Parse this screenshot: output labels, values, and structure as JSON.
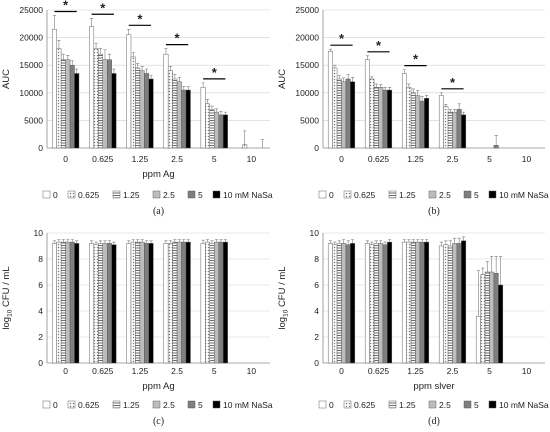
{
  "legend": {
    "items": [
      {
        "label": "0",
        "pattern": "white"
      },
      {
        "label": "0.625",
        "pattern": "dots"
      },
      {
        "label": "1.25",
        "pattern": "hlines"
      },
      {
        "label": "2.5",
        "pattern": "lightgray"
      },
      {
        "label": "5",
        "pattern": "darkgray"
      },
      {
        "label": "10 mM NaSa",
        "pattern": "black"
      }
    ]
  },
  "colors": {
    "white": "#ffffff",
    "lightgray": "#bdbdbd",
    "darkgray": "#7f7f7f",
    "black": "#000000",
    "dots": "#9a9a9a",
    "hlines": "#6e6e6e"
  },
  "chart_data": [
    {
      "type": "bar",
      "panel": "(a)",
      "ylabel": "AUC",
      "xlabel": "ppm Ag",
      "categories": [
        "0",
        "0.625",
        "1.25",
        "2.5",
        "5",
        "10"
      ],
      "yticks": [
        "0",
        "5000",
        "10000",
        "15000",
        "20000",
        "25000"
      ],
      "ylim": [
        0,
        25000
      ],
      "grid": true,
      "significance": "*",
      "sig_groups": [
        "0",
        "0.625",
        "1.25",
        "2.5",
        "5"
      ],
      "series": [
        {
          "name": "0",
          "values": [
            21500,
            22000,
            20500,
            17000,
            11000,
            0
          ],
          "errors": [
            2500,
            1500,
            1000,
            1000,
            800,
            0
          ]
        },
        {
          "name": "0.625",
          "values": [
            18000,
            18000,
            16500,
            14000,
            8000,
            600
          ],
          "errors": [
            1500,
            1000,
            800,
            800,
            800,
            2500
          ]
        },
        {
          "name": "1.25",
          "values": [
            16000,
            17000,
            14500,
            12500,
            7000,
            0
          ],
          "errors": [
            1000,
            1000,
            800,
            800,
            600,
            0
          ]
        },
        {
          "name": "2.5",
          "values": [
            16000,
            16000,
            14000,
            12000,
            6500,
            0
          ],
          "errors": [
            800,
            1800,
            800,
            800,
            600,
            0
          ]
        },
        {
          "name": "5",
          "values": [
            15000,
            16000,
            13500,
            10500,
            6000,
            0
          ],
          "errors": [
            800,
            1000,
            800,
            600,
            600,
            0
          ]
        },
        {
          "name": "10 mM NaSa",
          "values": [
            13500,
            13500,
            12500,
            10500,
            6000,
            0
          ],
          "errors": [
            800,
            800,
            700,
            600,
            500,
            1500
          ]
        }
      ]
    },
    {
      "type": "bar",
      "panel": "(b)",
      "ylabel": "AUC",
      "xlabel": "",
      "categories": [
        "0",
        "0.625",
        "1.25",
        "2.5",
        "5",
        "10"
      ],
      "yticks": [
        "0",
        "5000",
        "10000",
        "15000",
        "20000",
        "25000"
      ],
      "ylim": [
        0,
        25000
      ],
      "grid": true,
      "significance": "*",
      "sig_groups": [
        "0",
        "0.625",
        "1.25",
        "2.5"
      ],
      "series": [
        {
          "name": "0",
          "values": [
            17500,
            16000,
            13500,
            9500,
            0,
            0
          ],
          "errors": [
            400,
            700,
            700,
            500,
            0,
            0
          ]
        },
        {
          "name": "0.625",
          "values": [
            14500,
            12500,
            11000,
            7500,
            0,
            0
          ],
          "errors": [
            500,
            400,
            600,
            400,
            0,
            0
          ]
        },
        {
          "name": "1.25",
          "values": [
            12500,
            11000,
            10000,
            6500,
            0,
            0
          ],
          "errors": [
            600,
            600,
            700,
            500,
            0,
            0
          ]
        },
        {
          "name": "2.5",
          "values": [
            12000,
            11000,
            9500,
            6500,
            0,
            0
          ],
          "errors": [
            700,
            500,
            900,
            500,
            0,
            0
          ]
        },
        {
          "name": "5",
          "values": [
            12500,
            10500,
            8500,
            7000,
            500,
            0
          ],
          "errors": [
            800,
            500,
            800,
            1000,
            1800,
            0
          ]
        },
        {
          "name": "10 mM NaSa",
          "values": [
            12000,
            10500,
            9000,
            6000,
            0,
            0
          ],
          "errors": [
            800,
            500,
            500,
            500,
            0,
            0
          ]
        }
      ]
    },
    {
      "type": "bar",
      "panel": "(c)",
      "ylabel_main": "log",
      "ylabel_sub": "10",
      "ylabel_rest": " CFU / mL",
      "xlabel": "ppm Ag",
      "categories": [
        "0",
        "0.625",
        "1.25",
        "2.5",
        "5",
        "10"
      ],
      "yticks": [
        "0",
        "2",
        "4",
        "6",
        "8",
        "10"
      ],
      "ylim": [
        0,
        10
      ],
      "grid": true,
      "series": [
        {
          "name": "0",
          "values": [
            9.2,
            9.2,
            9.2,
            9.2,
            9.2,
            0
          ],
          "errors": [
            0.2,
            0.2,
            0.2,
            0.2,
            0.25,
            0
          ]
        },
        {
          "name": "0.625",
          "values": [
            9.3,
            9.1,
            9.3,
            9.2,
            9.3,
            0
          ],
          "errors": [
            0.2,
            0.2,
            0.2,
            0.2,
            0.2,
            0
          ]
        },
        {
          "name": "1.25",
          "values": [
            9.3,
            9.2,
            9.3,
            9.3,
            9.2,
            0
          ],
          "errors": [
            0.2,
            0.2,
            0.2,
            0.2,
            0.2,
            0
          ]
        },
        {
          "name": "2.5",
          "values": [
            9.3,
            9.2,
            9.3,
            9.3,
            9.3,
            0
          ],
          "errors": [
            0.2,
            0.2,
            0.2,
            0.2,
            0.2,
            0
          ]
        },
        {
          "name": "5",
          "values": [
            9.3,
            9.2,
            9.2,
            9.3,
            9.3,
            0
          ],
          "errors": [
            0.2,
            0.2,
            0.2,
            0.2,
            0.2,
            0
          ]
        },
        {
          "name": "10 mM NaSa",
          "values": [
            9.2,
            9.1,
            9.2,
            9.3,
            9.3,
            0
          ],
          "errors": [
            0.2,
            0.2,
            0.2,
            0.2,
            0.2,
            0
          ]
        }
      ]
    },
    {
      "type": "bar",
      "panel": "(d)",
      "ylabel_main": "log",
      "ylabel_sub": "10",
      "ylabel_rest": " CFU / mL",
      "xlabel": "ppm slver",
      "categories": [
        "0",
        "0.625",
        "1.25",
        "2.5",
        "5",
        "10"
      ],
      "yticks": [
        "0",
        "2",
        "4",
        "6",
        "8",
        "10"
      ],
      "ylim": [
        0,
        10
      ],
      "grid": true,
      "series": [
        {
          "name": "0",
          "values": [
            9.2,
            9.2,
            9.3,
            9.0,
            3.6,
            0
          ],
          "errors": [
            0.2,
            0.2,
            0.2,
            0.3,
            3.5,
            0
          ]
        },
        {
          "name": "0.625",
          "values": [
            9.1,
            9.1,
            9.3,
            9.1,
            6.8,
            0
          ],
          "errors": [
            0.2,
            0.2,
            0.2,
            0.3,
            0.5,
            0
          ]
        },
        {
          "name": "1.25",
          "values": [
            9.2,
            9.2,
            9.3,
            9.0,
            7.0,
            0
          ],
          "errors": [
            0.2,
            0.2,
            0.2,
            0.4,
            0.8,
            0
          ]
        },
        {
          "name": "2.5",
          "values": [
            9.2,
            9.2,
            9.3,
            9.2,
            7.0,
            0
          ],
          "errors": [
            0.3,
            0.2,
            0.2,
            0.4,
            1.2,
            0
          ]
        },
        {
          "name": "5",
          "values": [
            9.1,
            9.1,
            9.3,
            9.2,
            6.9,
            0
          ],
          "errors": [
            0.3,
            0.2,
            0.2,
            0.4,
            1.3,
            0
          ]
        },
        {
          "name": "10 mM NaSa",
          "values": [
            9.2,
            9.3,
            9.3,
            9.4,
            6.0,
            0
          ],
          "errors": [
            0.3,
            0.2,
            0.2,
            0.3,
            2.2,
            0
          ]
        }
      ]
    }
  ]
}
